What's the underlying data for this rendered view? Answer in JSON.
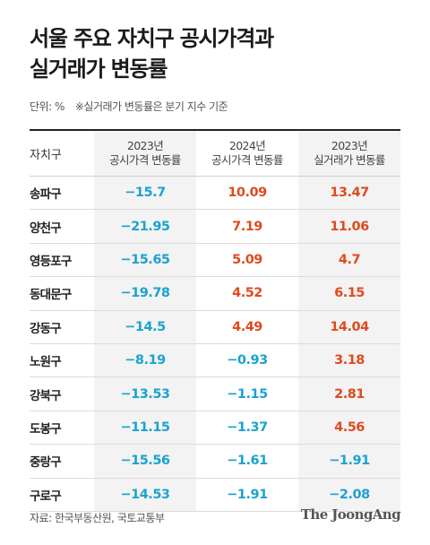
{
  "title_lines": [
    "서울 주요 자치구 공시가격과",
    "실거래가 변동률"
  ],
  "unit_note": "단위: %",
  "basis_note": "※실거래가 변동률은 분기 지수 기준",
  "table": {
    "header": {
      "district": "자치구",
      "col1_year": "2023년",
      "col1_label": "공시가격 변동률",
      "col2_year": "2024년",
      "col2_label": "공시가격 변동률",
      "col3_year": "2023년",
      "col3_label": "실거래가 변동률"
    },
    "rows": [
      {
        "district": "송파구",
        "v1": "−15.7",
        "v2": "10.09",
        "v3": "13.47"
      },
      {
        "district": "양천구",
        "v1": "−21.95",
        "v2": "7.19",
        "v3": "11.06"
      },
      {
        "district": "영등포구",
        "v1": "−15.65",
        "v2": "5.09",
        "v3": "4.7"
      },
      {
        "district": "동대문구",
        "v1": "−19.78",
        "v2": "4.52",
        "v3": "6.15"
      },
      {
        "district": "강동구",
        "v1": "−14.5",
        "v2": "4.49",
        "v3": "14.04"
      },
      {
        "district": "노원구",
        "v1": "−8.19",
        "v2": "−0.93",
        "v3": "3.18"
      },
      {
        "district": "강북구",
        "v1": "−13.53",
        "v2": "−1.15",
        "v3": "2.81"
      },
      {
        "district": "도봉구",
        "v1": "−11.15",
        "v2": "−1.37",
        "v3": "4.56"
      },
      {
        "district": "중랑구",
        "v1": "−15.56",
        "v2": "−1.61",
        "v3": "−1.91"
      },
      {
        "district": "구로구",
        "v1": "−14.53",
        "v2": "−1.91",
        "v3": "−2.08"
      }
    ]
  },
  "source": "자료: 한국부동산원, 국토교통부",
  "brand": "The JoongAng",
  "colors": {
    "negative": "#1aa3cf",
    "positive": "#e04a1f",
    "shade": "#f3f3f3"
  }
}
